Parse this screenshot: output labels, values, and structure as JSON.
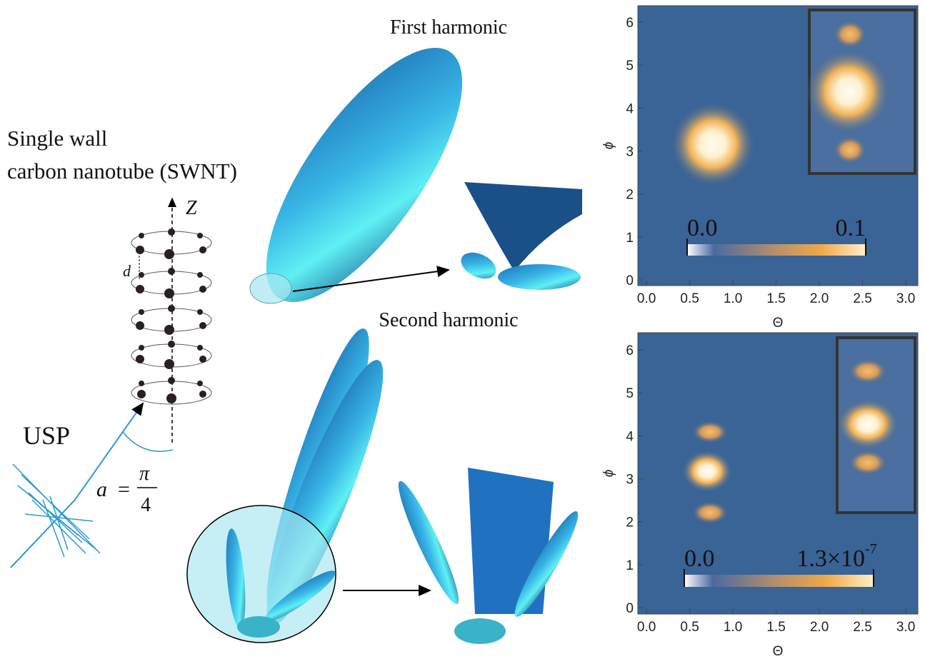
{
  "diagram": {
    "nanotube_label": [
      "Single wall",
      "carbon nanotube (SWNT)"
    ],
    "axis_label": "Z",
    "spacing_label": "d",
    "pulse_label": "USP",
    "angle": {
      "symbol": "a",
      "equals": "=",
      "numerator": "π",
      "denominator": "4"
    },
    "panels": [
      "First harmonic",
      "Second harmonic"
    ]
  },
  "chart_data": [
    {
      "type": "heatmap",
      "xlabel": "Θ",
      "ylabel": "ϕ",
      "xlim": [
        -0.1,
        3.14
      ],
      "ylim": [
        -0.13,
        6.38
      ],
      "xticks": [
        {
          "value": 0,
          "label": "0.0"
        },
        {
          "value": 0.5,
          "label": "0.5"
        },
        {
          "value": 1,
          "label": "1.0"
        },
        {
          "value": 1.5,
          "label": "1.5"
        },
        {
          "value": 2,
          "label": "2.0"
        },
        {
          "value": 2.5,
          "label": "2.5"
        },
        {
          "value": 3,
          "label": "3.0"
        }
      ],
      "yticks": [
        0,
        1,
        2,
        3,
        4,
        5,
        6
      ],
      "colorbar_labels": [
        "0.0",
        "0.1"
      ]
    },
    {
      "type": "heatmap",
      "xlabel": "Θ",
      "ylabel": "ϕ",
      "xlim": [
        -0.1,
        3.14
      ],
      "ylim": [
        -0.15,
        6.4
      ],
      "xticks": [
        {
          "value": 0,
          "label": "0.0"
        },
        {
          "value": 0.5,
          "label": "0.5"
        },
        {
          "value": 1,
          "label": "1.0"
        },
        {
          "value": 1.5,
          "label": "1.5"
        },
        {
          "value": 2,
          "label": "2.0"
        },
        {
          "value": 2.5,
          "label": "2.5"
        },
        {
          "value": 3,
          "label": "3.0"
        }
      ],
      "yticks": [
        0,
        1,
        2,
        3,
        4,
        5,
        6
      ],
      "colorbar_labels": [
        "0.0",
        "1.3×10"
      ],
      "colorbar_exponent": "-7"
    }
  ]
}
